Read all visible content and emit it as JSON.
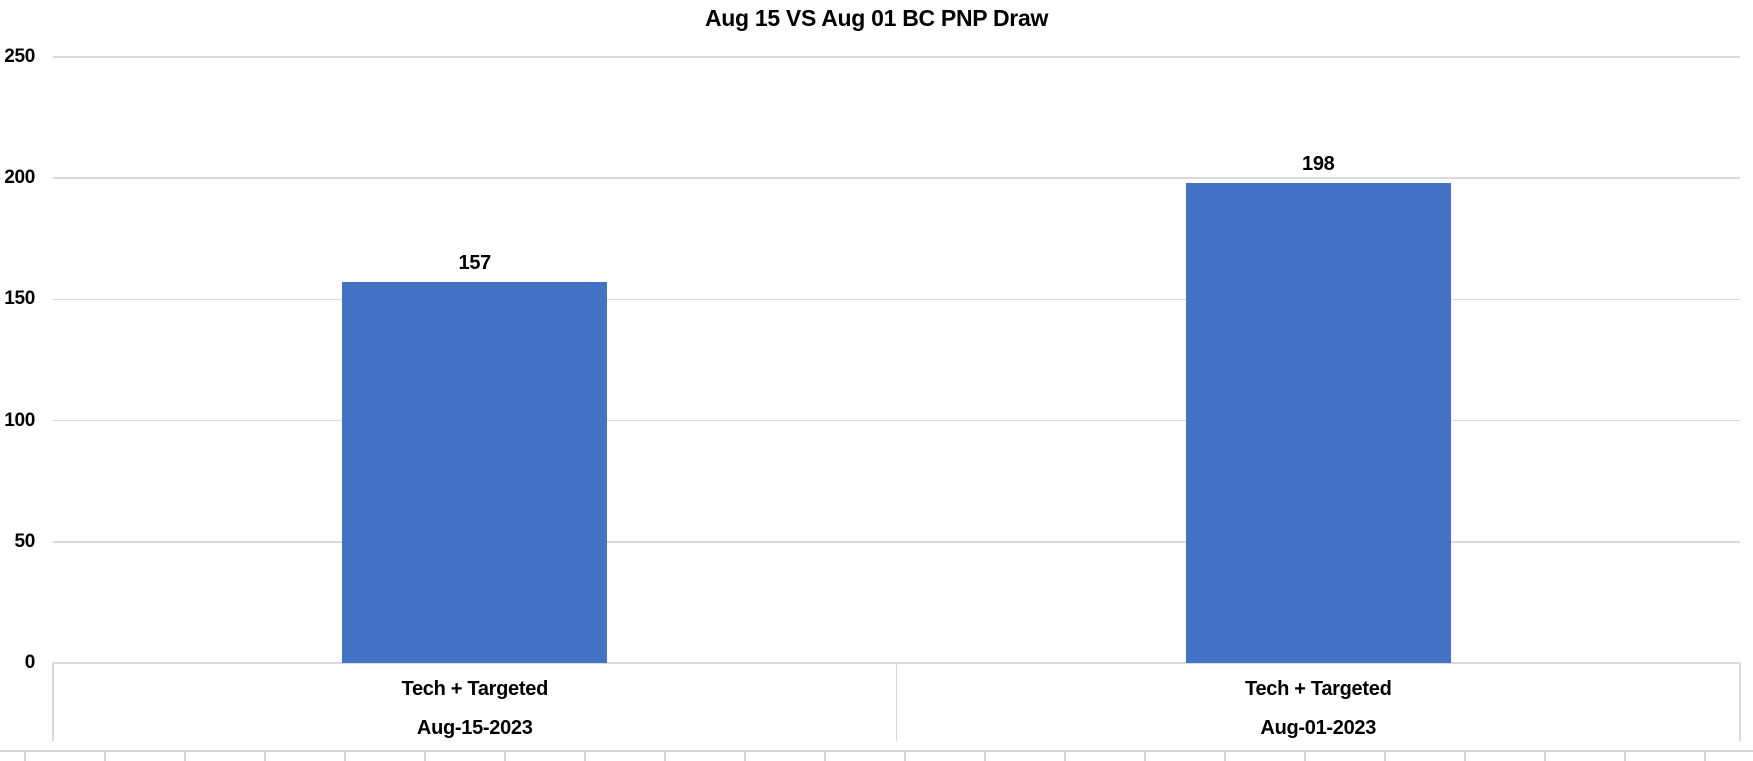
{
  "chart_data": {
    "type": "bar",
    "title": "Aug 15 VS Aug 01 BC PNP Draw",
    "categories": [
      {
        "label": "Tech + Targeted",
        "sublabel": "Aug-15-2023"
      },
      {
        "label": "Tech + Targeted",
        "sublabel": "Aug-01-2023"
      }
    ],
    "values": [
      157,
      198
    ],
    "data_labels": [
      "157",
      "198"
    ],
    "xlabel": "",
    "ylabel": "",
    "ylim": [
      0,
      250
    ],
    "yticks": [
      0,
      50,
      100,
      150,
      200,
      250
    ],
    "grid": "horizontal-only",
    "legend": "none",
    "bar_color": "#4472C4",
    "gridline_color": "#D9D9D9",
    "sheet_line_color": "#D5D5D5",
    "text_color": "#000000",
    "background_color": "#FFFFFF"
  }
}
